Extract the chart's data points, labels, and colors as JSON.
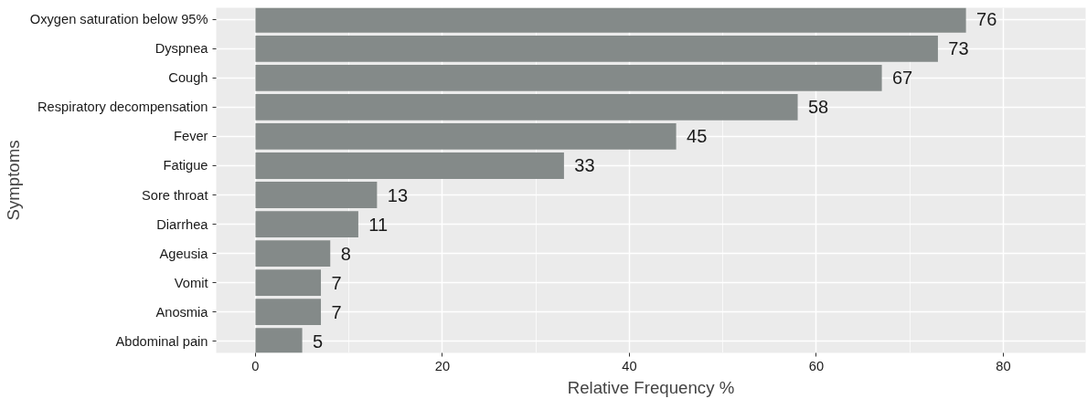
{
  "chart_data": {
    "type": "bar",
    "orientation": "horizontal",
    "xlabel": "Relative Frequency %",
    "ylabel": "Symptoms",
    "categories": [
      "Oxygen saturation below 95%",
      "Dyspnea",
      "Cough",
      "Respiratory decompensation",
      "Fever",
      "Fatigue",
      "Sore throat",
      "Diarrhea",
      "Ageusia",
      "Vomit",
      "Anosmia",
      "Abdominal pain"
    ],
    "values": [
      76,
      73,
      67,
      58,
      45,
      33,
      13,
      11,
      8,
      7,
      7,
      5
    ],
    "color": "#848a89",
    "data_labels": true,
    "grid": true,
    "xlim": [
      -4.2,
      88.8
    ],
    "xticks": [
      0,
      20,
      40,
      60,
      80
    ]
  }
}
